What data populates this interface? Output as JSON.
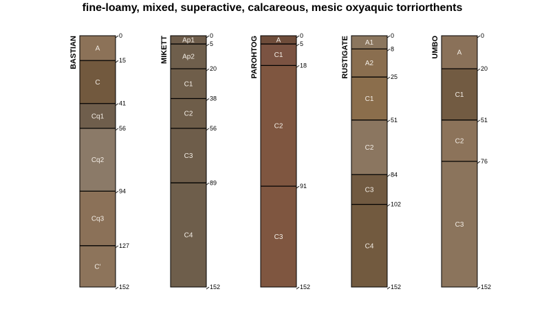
{
  "title": "fine-loamy, mixed, superactive, calcareous, mesic oxyaquic torriorthents",
  "max_depth": 152,
  "profiles": [
    {
      "name": "BASTIAN",
      "horizons": [
        {
          "name": "A",
          "top": 0,
          "bottom": 15,
          "color": "#8c7258"
        },
        {
          "name": "C",
          "top": 15,
          "bottom": 41,
          "color": "#72593e"
        },
        {
          "name": "Cq1",
          "top": 41,
          "bottom": 56,
          "color": "#6f5e4c"
        },
        {
          "name": "Cq2",
          "top": 56,
          "bottom": 94,
          "color": "#8b7a68"
        },
        {
          "name": "Cq3",
          "top": 94,
          "bottom": 127,
          "color": "#8b7158"
        },
        {
          "name": "C'",
          "top": 127,
          "bottom": 152,
          "color": "#8d745b"
        }
      ]
    },
    {
      "name": "MIKETT",
      "horizons": [
        {
          "name": "Ap1",
          "top": 0,
          "bottom": 5,
          "color": "#6d5c4a"
        },
        {
          "name": "Ap2",
          "top": 5,
          "bottom": 20,
          "color": "#6f5f4c"
        },
        {
          "name": "C1",
          "top": 20,
          "bottom": 38,
          "color": "#6f5e4a"
        },
        {
          "name": "C2",
          "top": 38,
          "bottom": 56,
          "color": "#6e5d49"
        },
        {
          "name": "C3",
          "top": 56,
          "bottom": 89,
          "color": "#6e5d4a"
        },
        {
          "name": "C4",
          "top": 89,
          "bottom": 152,
          "color": "#6e5e4b"
        }
      ]
    },
    {
      "name": "PAROHTOG",
      "horizons": [
        {
          "name": "A",
          "top": 0,
          "bottom": 5,
          "color": "#6e4c3a"
        },
        {
          "name": "C1",
          "top": 5,
          "bottom": 18,
          "color": "#7b5342"
        },
        {
          "name": "C2",
          "top": 18,
          "bottom": 91,
          "color": "#7f5640"
        },
        {
          "name": "C3",
          "top": 91,
          "bottom": 152,
          "color": "#7f5640"
        }
      ]
    },
    {
      "name": "RUSTIGATE",
      "horizons": [
        {
          "name": "A1",
          "top": 0,
          "bottom": 8,
          "color": "#8b765e"
        },
        {
          "name": "A2",
          "top": 8,
          "bottom": 25,
          "color": "#8a6e4f"
        },
        {
          "name": "C1",
          "top": 25,
          "bottom": 51,
          "color": "#8b6e4c"
        },
        {
          "name": "C2",
          "top": 51,
          "bottom": 84,
          "color": "#8b7660"
        },
        {
          "name": "C3",
          "top": 84,
          "bottom": 102,
          "color": "#715a41"
        },
        {
          "name": "C4",
          "top": 102,
          "bottom": 152,
          "color": "#725a3f"
        }
      ]
    },
    {
      "name": "UMBO",
      "horizons": [
        {
          "name": "A",
          "top": 0,
          "bottom": 20,
          "color": "#8a7159"
        },
        {
          "name": "C1",
          "top": 20,
          "bottom": 51,
          "color": "#725b42"
        },
        {
          "name": "C2",
          "top": 51,
          "bottom": 76,
          "color": "#8c735a"
        },
        {
          "name": "C3",
          "top": 76,
          "bottom": 152,
          "color": "#8b745c"
        }
      ]
    }
  ]
}
